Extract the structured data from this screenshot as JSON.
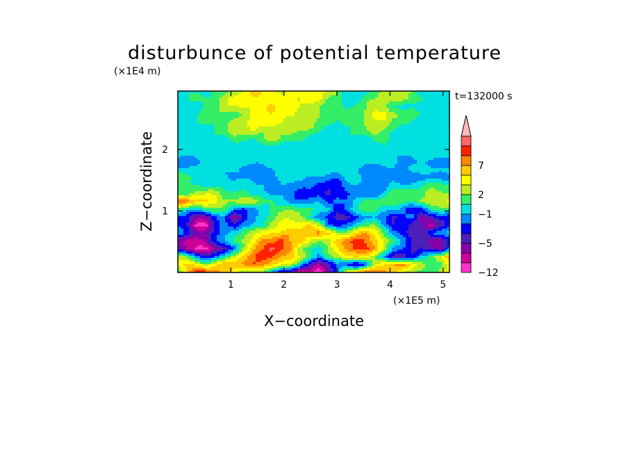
{
  "chart_data": {
    "type": "heatmap",
    "title": "disturbunce of potential temperature",
    "xlabel": "X−coordinate",
    "ylabel": "Z−coordinate",
    "x_unit": "(×1E5 m)",
    "y_unit": "(×1E4 m)",
    "time_label": "t=132000 s",
    "xlim": [
      0,
      5.12
    ],
    "ylim": [
      0,
      2.95
    ],
    "x_ticks": [
      "1",
      "2",
      "3",
      "4",
      "5"
    ],
    "y_ticks": [
      "1",
      "2"
    ],
    "colorbar": {
      "level_count": 14,
      "levels": [
        -12,
        -10,
        -7,
        -5,
        -3,
        -2,
        -1,
        1,
        2,
        3,
        5,
        7,
        9,
        11,
        13
      ],
      "tick_labels": [
        "−12",
        "−5",
        "−1",
        "2",
        "7"
      ],
      "colors": [
        "#ff33cc",
        "#cc0099",
        "#8800aa",
        "#4c1fb8",
        "#0000ff",
        "#0088ff",
        "#00e0e0",
        "#33ee66",
        "#bbee22",
        "#ffff00",
        "#ffcc00",
        "#ff8800",
        "#ff2200",
        "#ff6666",
        "#ffbbbb"
      ]
    },
    "field_rows": [
      "GGGGHHIJKJJIJJJJIHGGGHIIIHGGGG",
      "GGHHHIJJJJJKJIJJHHGGHHIIIHHGGG",
      "GGGHHIIJJJKJJIIIHHGHHIIHGGGGGG",
      "GGGHHHHIJJJJJIIIHHHHIJJIHHGGGG",
      "GGGHHHIIJJJJIIIHHGHHIIIHHGGGGG",
      "GGGGHHIIJIIIIHHHGGGHHIHHGGGGGG",
      "GGGGGGHHHHIHHHGGGGGGGHHGGGGGGG",
      "GGGGGGGGGGGGGGGGGGGGGGGGGGGGGG",
      "GGGGGGGGGGGGGGGGGGGGGGGGGGGGGG",
      "FFFGGGGGGGGGGGGGGGGGGGGGFFFFFF",
      "GGGGGGGFFFFGGGGGGGGGFFFFFGGGGG",
      "HHGGGGFFFFFGGGFFFFGGFFFFFFFFFF",
      "HHHGGGGGGGFFFFFEEEFFFFFGGGGHHH",
      "HHIIIHHHGGFFFEEEDEEFFFGHHHHIII",
      "LLKKJIIIIHHGFFFFEFFGHHHHHHIIIJ",
      "HGGHHHFEFGHHHHHGGEFGHHGGFEEGHH",
      "EECCEFCEFGHIIIHFEDDEFGFDEFCDEE",
      "EDAAEFEFFGIJJJKIEEFGHIFDEDDBDE",
      "FEDDEFGHIJKKKKKLKIIKKJHFEDDEFG",
      "CBBCEFHIJLLMKKJIIKLMLKJHFDDCCE",
      "DBAACDFIKLNMLIHGHJLMMLIFEDEDCF",
      "IHFEFGIKLMMLKIHFHIKKJHFDDEGHIK",
      "JKJIJKKLMLKJIGDCDFEDEIKLLJIHHJ",
      "HKMMLKJIIHFDDABACEJKMMLKIHHHIJ"
    ]
  }
}
